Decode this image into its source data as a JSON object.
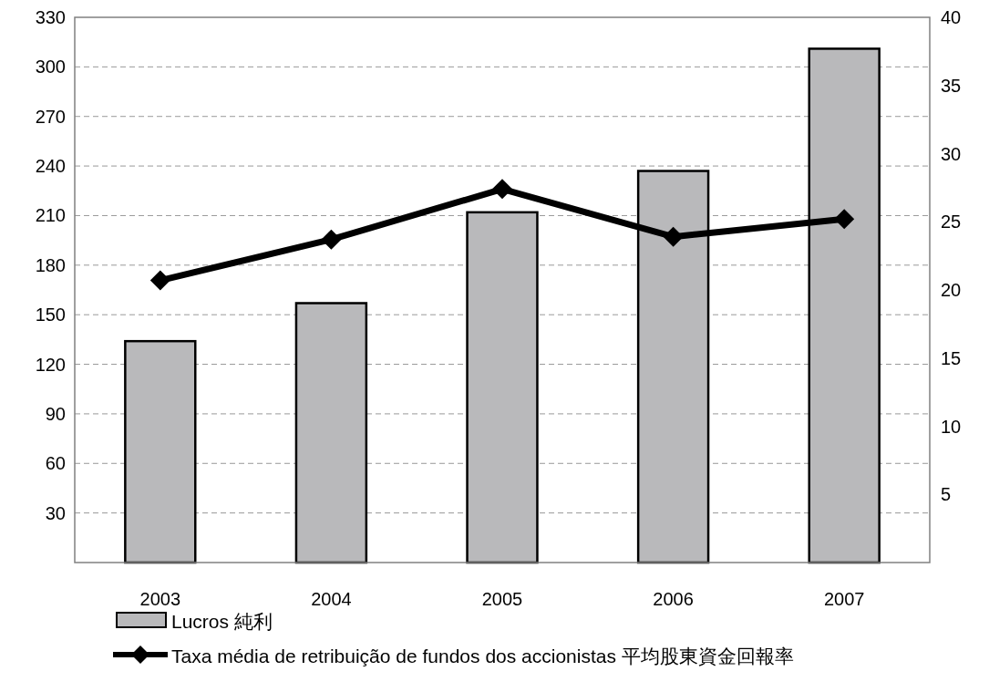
{
  "chart_data": {
    "type": "bar",
    "categories": [
      "2003",
      "2004",
      "2005",
      "2006",
      "2007"
    ],
    "series": [
      {
        "name": "Lucros 純利",
        "color": "#b9b9bb",
        "values": [
          134,
          157,
          212,
          237,
          311
        ]
      },
      {
        "name": "Taxa média de retribuição de fundos dos accionistas 平均股東資金回報率",
        "type": "line",
        "axis": "y2",
        "color": "#000000",
        "values": [
          20.7,
          23.7,
          27.4,
          23.9,
          25.2
        ]
      }
    ],
    "ylim": [
      0,
      330
    ],
    "yticks": [
      30,
      60,
      90,
      120,
      150,
      180,
      210,
      240,
      270,
      300,
      330
    ],
    "y2lim": [
      0,
      40
    ],
    "y2ticks": [
      5,
      10,
      15,
      20,
      25,
      30,
      35,
      40
    ],
    "grid": "y",
    "legend": "bottom",
    "marker": "diamond"
  }
}
